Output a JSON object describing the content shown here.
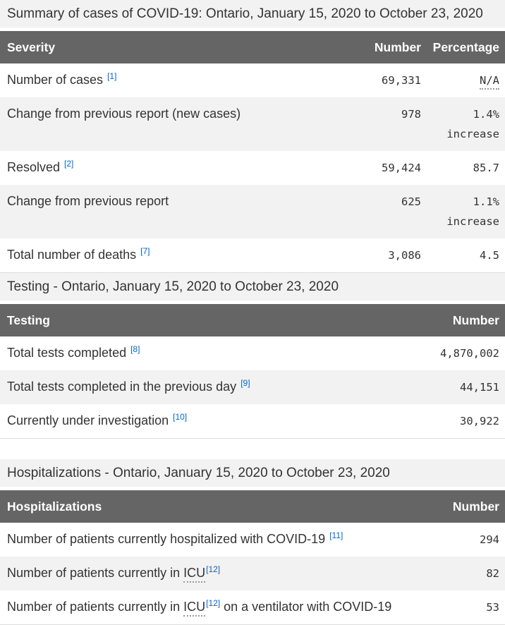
{
  "theme": {
    "header_bg": "#656565",
    "header_text": "#ffffff",
    "caption_bg": "#f2f2f2",
    "stripe_bg": "#f2f2f2",
    "body_text": "#333333",
    "link_color": "#0066cc"
  },
  "tables": [
    {
      "caption": "Summary of cases of COVID-19: Ontario, January 15, 2020 to October 23, 2020",
      "columns": [
        "Severity",
        "Number",
        "Percentage"
      ],
      "rows": [
        {
          "pre": "Number of cases ",
          "fn": "[1]",
          "number": "69,331",
          "pct": "N/A"
        },
        {
          "pre": "Change from previous report (new cases)",
          "number": "978",
          "pct": "1.4% increase"
        },
        {
          "pre": "Resolved ",
          "fn": "[2]",
          "number": "59,424",
          "pct": "85.7"
        },
        {
          "pre": "Change from previous report",
          "number": "625",
          "pct": "1.1% increase"
        },
        {
          "pre": "Total number of deaths ",
          "fn": "[7]",
          "number": "3,086",
          "pct": "4.5"
        }
      ]
    },
    {
      "caption": "Testing - Ontario, January 15, 2020 to October 23, 2020",
      "columns": [
        "Testing",
        "Number"
      ],
      "rows": [
        {
          "pre": "Total tests completed ",
          "fn": "[8]",
          "number": "4,870,002"
        },
        {
          "pre": "Total tests completed in the previous day ",
          "fn": "[9]",
          "number": "44,151"
        },
        {
          "pre": "Currently under investigation ",
          "fn": "[10]",
          "number": "30,922"
        }
      ]
    },
    {
      "caption": "Hospitalizations - Ontario, January 15, 2020 to October 23, 2020",
      "columns": [
        "Hospitalizations",
        "Number"
      ],
      "rows": [
        {
          "pre": "Number of patients currently hospitalized with COVID-19 ",
          "fn": "[11]",
          "number": "294"
        },
        {
          "pre": "Number of patients currently in ",
          "abbr": "ICU",
          "fn": "[12]",
          "number": "82"
        },
        {
          "pre": "Number of patients currently in ",
          "abbr": "ICU",
          "fn": "[12]",
          "post": " on a ventilator with COVID-19",
          "number": "53"
        }
      ]
    }
  ]
}
